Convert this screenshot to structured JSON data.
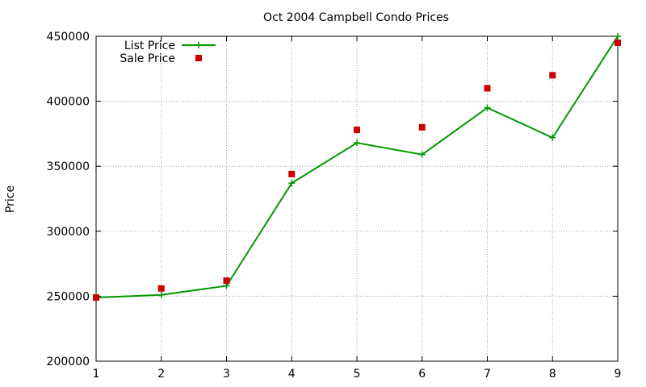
{
  "chart_data": {
    "type": "line",
    "title": "Oct 2004 Campbell Condo Prices",
    "xlabel": "",
    "ylabel": "Price",
    "xlim": [
      1,
      9
    ],
    "ylim": [
      200000,
      450000
    ],
    "xticks": [
      "1",
      "2",
      "3",
      "4",
      "5",
      "6",
      "7",
      "8",
      "9"
    ],
    "yticks": [
      "200000",
      "250000",
      "300000",
      "350000",
      "400000",
      "450000"
    ],
    "grid": true,
    "legend_position": "top-left",
    "x": [
      1,
      2,
      3,
      4,
      5,
      6,
      7,
      8,
      9
    ],
    "series": [
      {
        "name": "List Price",
        "style": "linespoints",
        "marker": "plus",
        "color": "#009900",
        "values": [
          249000,
          251000,
          258000,
          337000,
          368000,
          359000,
          395000,
          372000,
          450000
        ]
      },
      {
        "name": "Sale Price",
        "style": "points",
        "marker": "square",
        "color": "#cc0000",
        "values": [
          249000,
          256000,
          262000,
          344000,
          378000,
          380000,
          410000,
          420000,
          445000
        ]
      }
    ]
  }
}
